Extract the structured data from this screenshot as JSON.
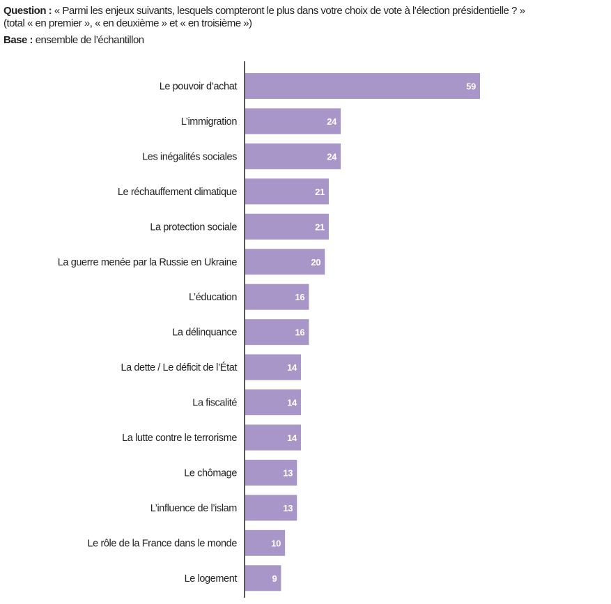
{
  "header": {
    "question_label": "Question :",
    "question_text": "« Parmi les enjeux suivants, lesquels compteront le plus dans votre choix de vote à l’élection présidentielle ? »",
    "question_sub": "(total « en premier », « en deuxième » et « en troisième »)",
    "base_label": "Base :",
    "base_text": "ensemble de l’échantillon"
  },
  "colors": {
    "bar": "#a896c8",
    "axis": "#231f20",
    "value_text": "#ffffff"
  },
  "chart_data": {
    "type": "bar",
    "orientation": "horizontal",
    "categories": [
      "Le pouvoir d’achat",
      "L’immigration",
      "Les inégalités sociales",
      "Le réchauffement climatique",
      "La protection sociale",
      "La guerre menée par la Russie en Ukraine",
      "L’éducation",
      "La délinquance",
      "La dette / Le déficit de l’État",
      "La fiscalité",
      "La lutte contre le terrorisme",
      "Le chômage",
      "L’influence de l’islam",
      "Le rôle de la France dans le monde",
      "Le logement"
    ],
    "values": [
      59,
      24,
      24,
      21,
      21,
      20,
      16,
      16,
      14,
      14,
      14,
      13,
      13,
      10,
      9
    ],
    "title": "",
    "xlabel": "",
    "ylabel": "",
    "xlim": [
      0,
      59
    ],
    "grid": false,
    "legend": "none"
  }
}
